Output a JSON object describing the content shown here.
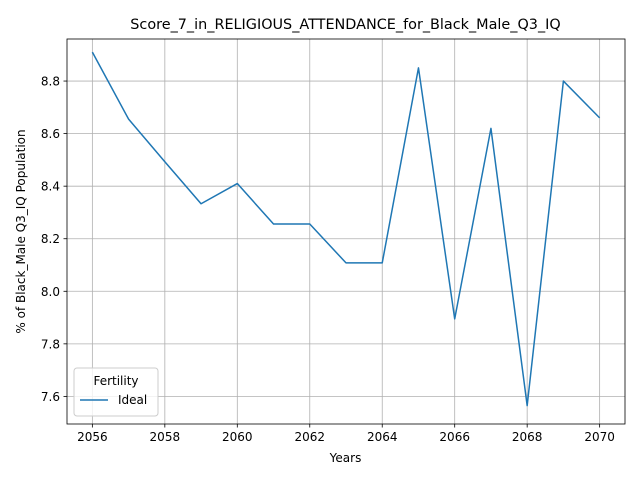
{
  "chart_data": {
    "type": "line",
    "title": "Score_7_in_RELIGIOUS_ATTENDANCE_for_Black_Male_Q3_IQ",
    "xlabel": "Years",
    "ylabel": "% of Black_Male Q3_IQ Population",
    "xlim": [
      2055.3,
      2070.7
    ],
    "ylim": [
      7.495,
      8.96
    ],
    "xticks": [
      2056,
      2058,
      2060,
      2062,
      2064,
      2066,
      2068,
      2070
    ],
    "yticks": [
      7.6,
      7.8,
      8.0,
      8.2,
      8.4,
      8.6,
      8.8
    ],
    "xtick_labels": [
      "2056",
      "2058",
      "2060",
      "2062",
      "2064",
      "2066",
      "2068",
      "2070"
    ],
    "ytick_labels": [
      "7.6",
      "7.8",
      "8.0",
      "8.2",
      "8.4",
      "8.6",
      "8.8"
    ],
    "grid": true,
    "legend": {
      "title": "Fertility",
      "placement": "lower-left"
    },
    "series": [
      {
        "name": "Ideal",
        "color": "#1f77b4",
        "x": [
          2056,
          2057,
          2058,
          2059,
          2060,
          2061,
          2062,
          2063,
          2064,
          2065,
          2066,
          2067,
          2068,
          2069,
          2070
        ],
        "y": [
          8.91,
          8.655,
          8.493,
          8.333,
          8.41,
          8.256,
          8.256,
          8.108,
          8.108,
          8.85,
          7.895,
          8.62,
          7.565,
          8.8,
          8.66
        ]
      }
    ]
  }
}
